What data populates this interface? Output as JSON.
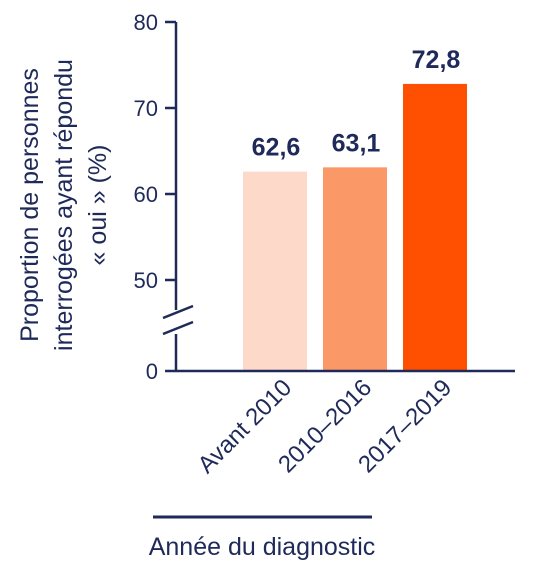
{
  "chart_data": {
    "type": "bar",
    "categories": [
      "Avant 2010",
      "2010–2016",
      "2017–2019"
    ],
    "values": [
      62.6,
      63.1,
      72.8
    ],
    "value_labels": [
      "62,6",
      "63,1",
      "72,8"
    ],
    "bar_colors": [
      "#fcd9c8",
      "#fb9868",
      "#fe5000"
    ],
    "xlabel": "Année du diagnostic",
    "ylabel_lines": [
      "Proportion de personnes",
      "interrogées ayant répondu",
      "« oui » (%)"
    ],
    "yticks": [
      {
        "value": 80,
        "label": "80"
      },
      {
        "value": 70,
        "label": "70"
      },
      {
        "value": 60,
        "label": "60"
      },
      {
        "value": 50,
        "label": "50"
      },
      {
        "value": 0,
        "label": "0"
      }
    ],
    "ylim": [
      0,
      80
    ],
    "axis_break": true,
    "grid": false,
    "axis_color": "#1f2a5a",
    "text_color": "#1f2a5a"
  }
}
